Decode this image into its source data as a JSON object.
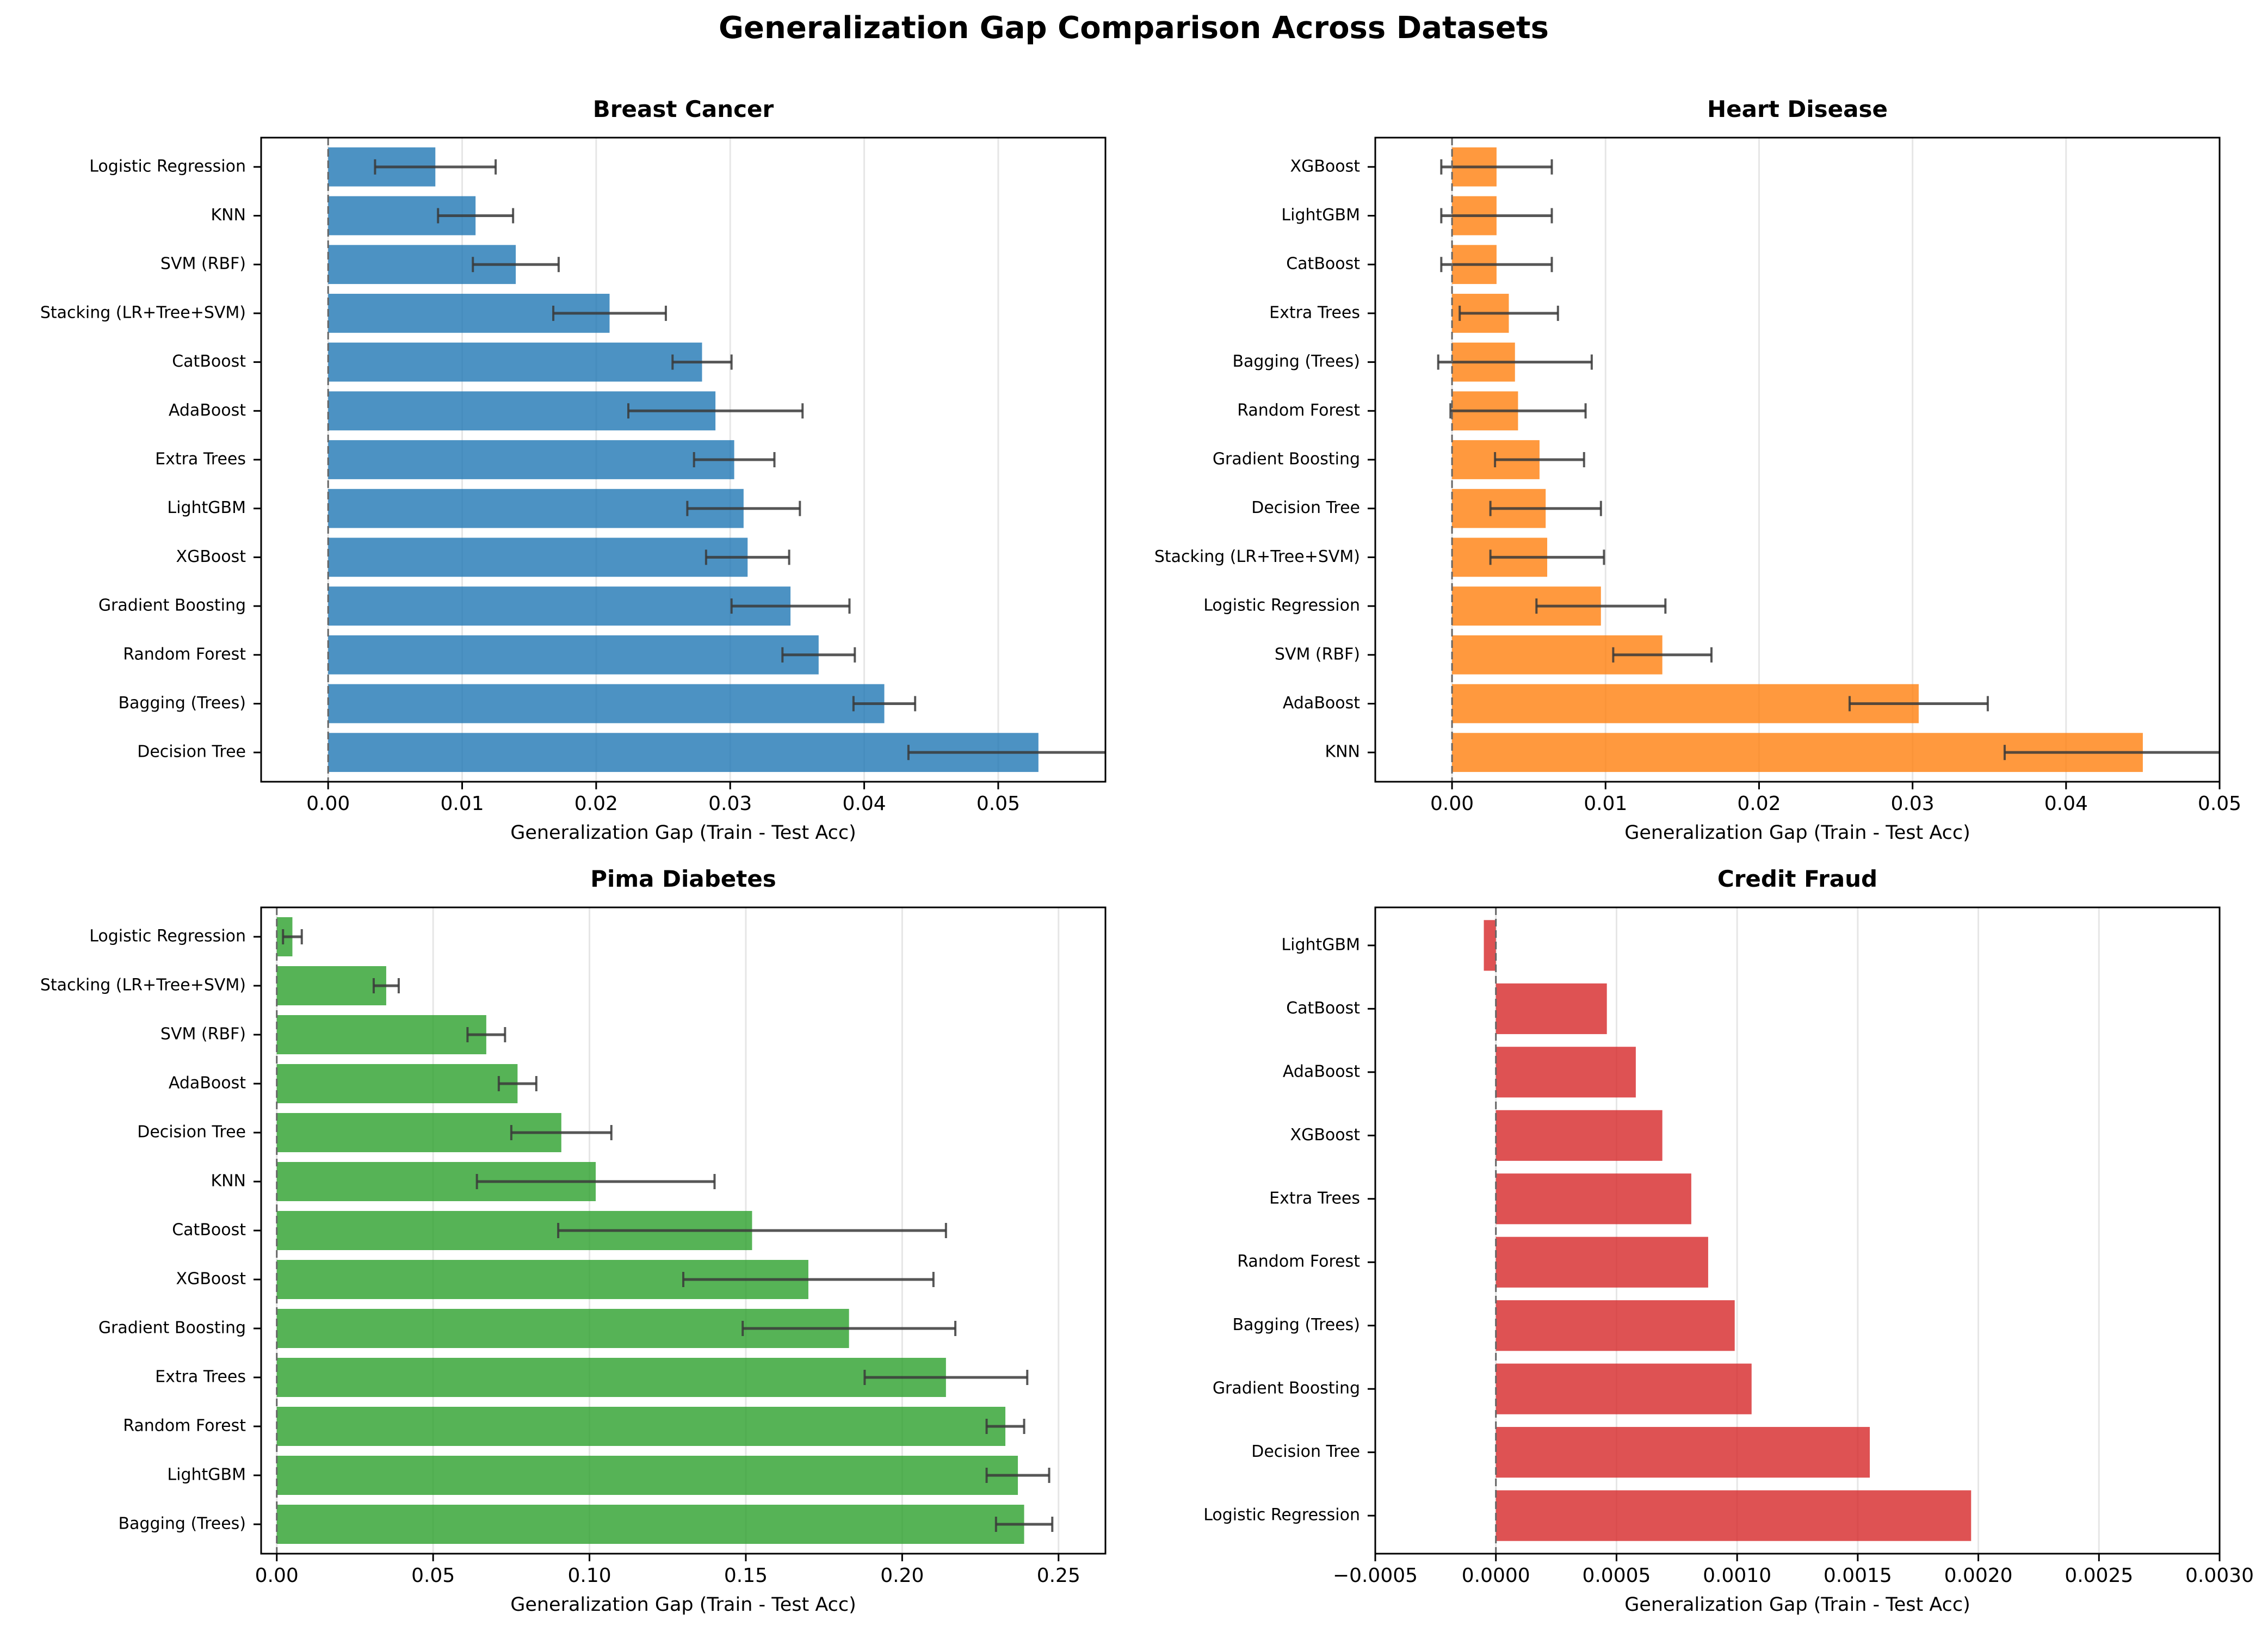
{
  "suptitle": "Generalization Gap Comparison Across Datasets",
  "colors": {
    "breast": "#1f77b4",
    "heart": "#ff7f0e",
    "pima": "#2ca02c",
    "credit": "#d62728",
    "error": "#3a3a3a",
    "zero_line": "#666666",
    "grid": "#e6e6e6"
  },
  "chart_data": [
    {
      "type": "bar",
      "orientation": "horizontal",
      "title": "Breast Cancer",
      "xlabel": "Generalization Gap (Train - Test Acc)",
      "ylabel": "",
      "xlim": [
        -0.005,
        0.058
      ],
      "xticks": [
        0.0,
        0.01,
        0.02,
        0.03,
        0.04,
        0.05
      ],
      "xtick_labels": [
        "0.00",
        "0.01",
        "0.02",
        "0.03",
        "0.04",
        "0.05"
      ],
      "grid": "x",
      "color_key": "breast",
      "categories": [
        "Logistic Regression",
        "KNN",
        "SVM (RBF)",
        "Stacking (LR+Tree+SVM)",
        "CatBoost",
        "AdaBoost",
        "Extra Trees",
        "LightGBM",
        "XGBoost",
        "Gradient Boosting",
        "Random Forest",
        "Bagging (Trees)",
        "Decision Tree"
      ],
      "values": [
        0.008,
        0.011,
        0.014,
        0.021,
        0.0279,
        0.0289,
        0.0303,
        0.031,
        0.0313,
        0.0345,
        0.0366,
        0.0415,
        0.053
      ],
      "errors": [
        0.0045,
        0.0028,
        0.0032,
        0.0042,
        0.0022,
        0.0065,
        0.003,
        0.0042,
        0.0031,
        0.0044,
        0.0027,
        0.0023,
        0.0097
      ]
    },
    {
      "type": "bar",
      "orientation": "horizontal",
      "title": "Heart Disease",
      "xlabel": "Generalization Gap (Train - Test Acc)",
      "ylabel": "",
      "xlim": [
        -0.005,
        0.05
      ],
      "xticks": [
        0.0,
        0.01,
        0.02,
        0.03,
        0.04,
        0.05
      ],
      "xtick_labels": [
        "0.00",
        "0.01",
        "0.02",
        "0.03",
        "0.04",
        "0.05"
      ],
      "grid": "x",
      "color_key": "heart",
      "categories": [
        "XGBoost",
        "LightGBM",
        "CatBoost",
        "Extra Trees",
        "Bagging (Trees)",
        "Random Forest",
        "Gradient Boosting",
        "Decision Tree",
        "Stacking (LR+Tree+SVM)",
        "Logistic Regression",
        "SVM (RBF)",
        "AdaBoost",
        "KNN"
      ],
      "values": [
        0.0029,
        0.0029,
        0.0029,
        0.0037,
        0.0041,
        0.0043,
        0.0057,
        0.0061,
        0.0062,
        0.0097,
        0.0137,
        0.0304,
        0.045
      ],
      "errors": [
        0.0036,
        0.0036,
        0.0036,
        0.0032,
        0.005,
        0.0044,
        0.0029,
        0.0036,
        0.0037,
        0.0042,
        0.0032,
        0.0045,
        0.009
      ]
    },
    {
      "type": "bar",
      "orientation": "horizontal",
      "title": "Pima Diabetes",
      "xlabel": "Generalization Gap (Train - Test Acc)",
      "ylabel": "",
      "xlim": [
        -0.005,
        0.265
      ],
      "xticks": [
        0.0,
        0.05,
        0.1,
        0.15,
        0.2,
        0.25
      ],
      "xtick_labels": [
        "0.00",
        "0.05",
        "0.10",
        "0.15",
        "0.20",
        "0.25"
      ],
      "grid": "x",
      "color_key": "pima",
      "categories": [
        "Logistic Regression",
        "Stacking (LR+Tree+SVM)",
        "SVM (RBF)",
        "AdaBoost",
        "Decision Tree",
        "KNN",
        "CatBoost",
        "XGBoost",
        "Gradient Boosting",
        "Extra Trees",
        "Random Forest",
        "LightGBM",
        "Bagging (Trees)"
      ],
      "values": [
        0.005,
        0.035,
        0.067,
        0.077,
        0.091,
        0.102,
        0.152,
        0.17,
        0.183,
        0.214,
        0.233,
        0.237,
        0.239
      ],
      "errors": [
        0.003,
        0.004,
        0.006,
        0.006,
        0.016,
        0.038,
        0.062,
        0.04,
        0.034,
        0.026,
        0.006,
        0.01,
        0.009
      ]
    },
    {
      "type": "bar",
      "orientation": "horizontal",
      "title": "Credit Fraud",
      "xlabel": "Generalization Gap (Train - Test Acc)",
      "ylabel": "",
      "xlim": [
        -0.0005,
        0.003
      ],
      "xticks": [
        -0.0005,
        0.0,
        0.0005,
        0.001,
        0.0015,
        0.002,
        0.0025,
        0.003
      ],
      "xtick_labels": [
        "−0.0005",
        "0.0000",
        "0.0005",
        "0.0010",
        "0.0015",
        "0.0020",
        "0.0025",
        "0.0030"
      ],
      "grid": "x",
      "color_key": "credit",
      "categories": [
        "LightGBM",
        "CatBoost",
        "AdaBoost",
        "XGBoost",
        "Extra Trees",
        "Random Forest",
        "Bagging (Trees)",
        "Gradient Boosting",
        "Decision Tree",
        "Logistic Regression"
      ],
      "values": [
        -5e-05,
        0.00046,
        0.00058,
        0.00069,
        0.00081,
        0.00088,
        0.00099,
        0.00106,
        0.00155,
        0.00197
      ],
      "errors": [
        0,
        0,
        0,
        0,
        0,
        0,
        0,
        0,
        0,
        0
      ]
    }
  ]
}
